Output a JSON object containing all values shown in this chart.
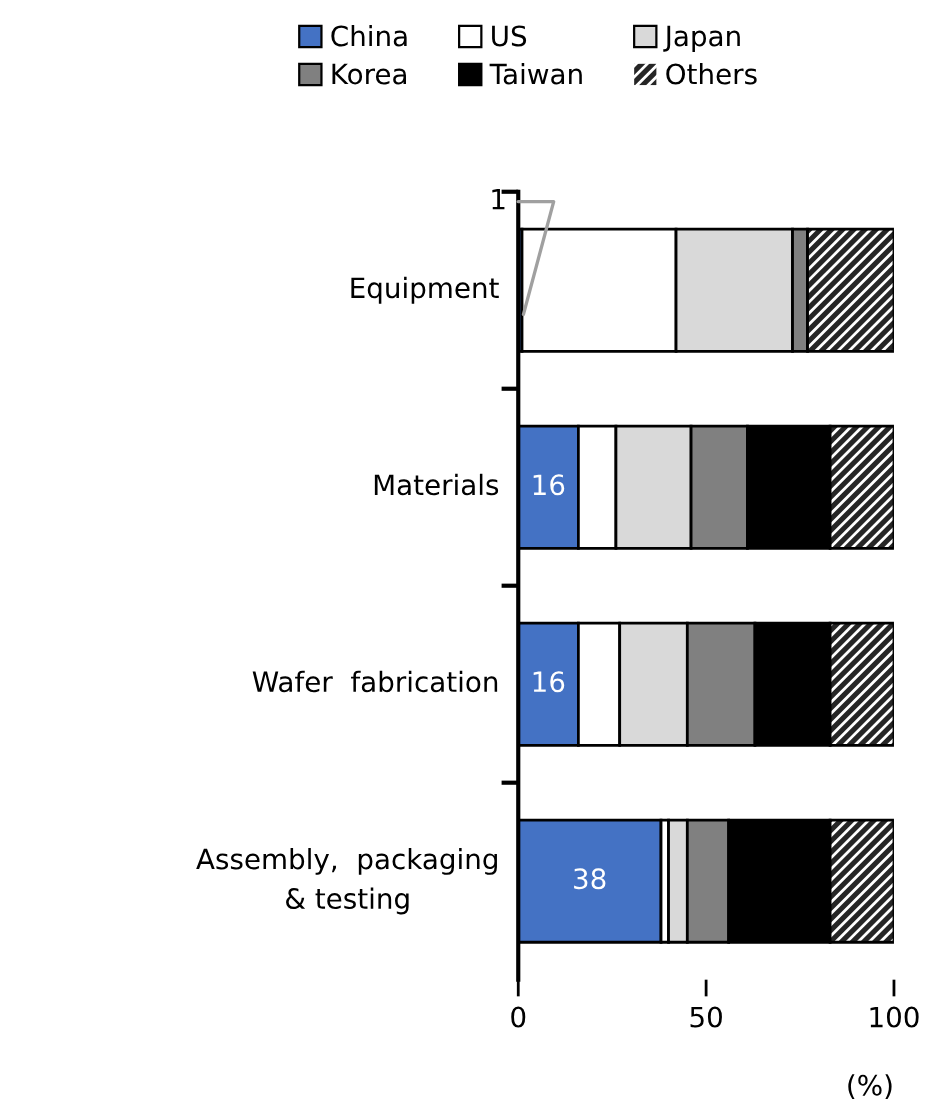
{
  "chart_data": {
    "type": "bar",
    "orientation": "horizontal",
    "stacked": true,
    "categories": [
      "Equipment",
      "Materials",
      "Wafer  fabrication",
      "Assembly,  packaging\n& testing"
    ],
    "series": [
      {
        "name": "China",
        "color": "#4472c4",
        "values": [
          1,
          16,
          16,
          38
        ],
        "value_labels": [
          "1",
          "16",
          "16",
          "38"
        ]
      },
      {
        "name": "US",
        "color": "#ffffff",
        "values": [
          41,
          10,
          11,
          2
        ]
      },
      {
        "name": "Japan",
        "color": "#d9d9d9",
        "values": [
          31,
          20,
          18,
          5
        ]
      },
      {
        "name": "Korea",
        "color": "#808080",
        "values": [
          4,
          15,
          18,
          11
        ]
      },
      {
        "name": "Taiwan",
        "color": "#000000",
        "values": [
          0,
          22,
          20,
          27
        ]
      },
      {
        "name": "Others",
        "color": "#262626",
        "values": [
          23,
          17,
          17,
          17
        ]
      }
    ],
    "xlim": [
      0,
      100
    ],
    "xticks": [
      0,
      50,
      100
    ],
    "xlabel": "(%)",
    "legend": "top",
    "grid": false
  }
}
